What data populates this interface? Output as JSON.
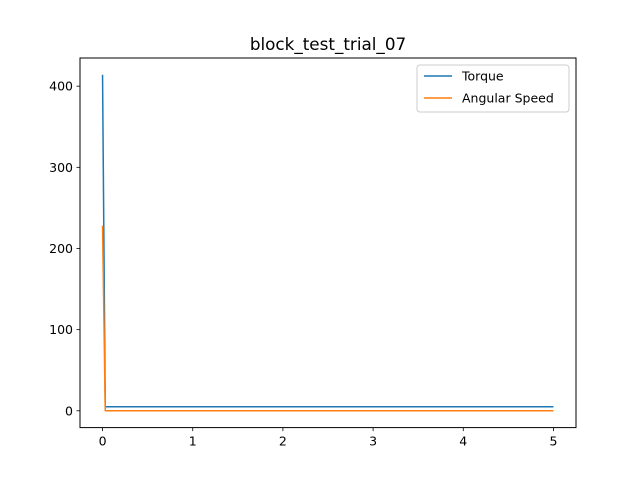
{
  "chart_data": {
    "type": "line",
    "title": "block_test_trial_07",
    "xlabel": "",
    "ylabel": "",
    "xlim": [
      -0.25,
      5.25
    ],
    "ylim": [
      -20.7,
      434.7
    ],
    "xticks": [
      0,
      1,
      2,
      3,
      4,
      5
    ],
    "yticks": [
      0,
      100,
      200,
      300,
      400
    ],
    "grid": false,
    "legend_position": "top-right",
    "series": [
      {
        "name": "Torque",
        "color": "#1f77b4",
        "x": [
          0,
          0.03,
          5
        ],
        "y": [
          414,
          5,
          5
        ]
      },
      {
        "name": "Angular Speed",
        "color": "#ff7f0e",
        "x": [
          0,
          0.03,
          5
        ],
        "y": [
          228,
          0,
          0
        ]
      }
    ]
  }
}
